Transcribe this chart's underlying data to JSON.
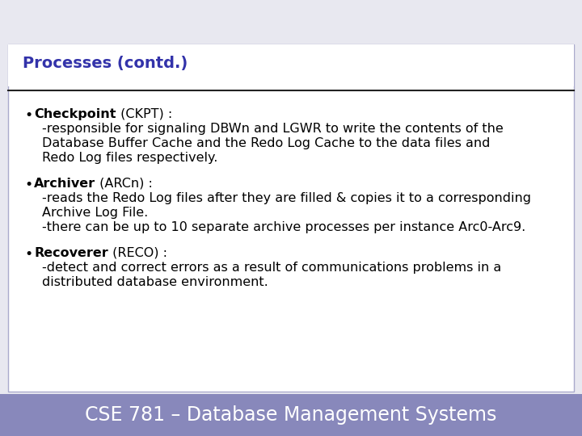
{
  "title": "Processes (contd.)",
  "title_color": "#3333aa",
  "title_fontsize": 14,
  "bg_color": "#ffffff",
  "slide_bg": "#e8e8f0",
  "footer_bg": "#8888bb",
  "footer_text": "CSE 781 – Database Management Systems",
  "footer_color": "#ffffff",
  "footer_fontsize": 17,
  "border_color": "#aaaacc",
  "line_color": "#222222",
  "bullet_color": "#000000",
  "content_fontsize": 11.5,
  "bullets": [
    {
      "label": "Checkpoint",
      "label_suffix": " (CKPT) :",
      "lines": [
        "-responsible for signaling DBWn and LGWR to write the contents of the",
        "Database Buffer Cache and the Redo Log Cache to the data files and",
        "Redo Log files respectively."
      ]
    },
    {
      "label": "Archiver",
      "label_suffix": " (ARCn) :",
      "lines": [
        "-reads the Redo Log files after they are filled & copies it to a corresponding",
        "Archive Log File.",
        "-there can be up to 10 separate archive processes per instance Arc0-Arc9."
      ]
    },
    {
      "label": "Recoverer",
      "label_suffix": " (RECO) :",
      "lines": [
        "-detect and correct errors as a result of communications problems in a",
        "distributed database environment."
      ]
    }
  ]
}
